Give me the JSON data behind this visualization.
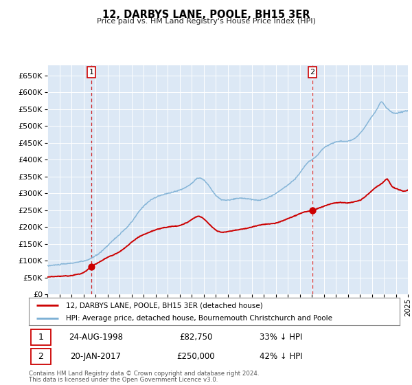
{
  "title": "12, DARBYS LANE, POOLE, BH15 3ER",
  "subtitle": "Price paid vs. HM Land Registry's House Price Index (HPI)",
  "legend_label_red": "12, DARBYS LANE, POOLE, BH15 3ER (detached house)",
  "legend_label_blue": "HPI: Average price, detached house, Bournemouth Christchurch and Poole",
  "transaction1_label": "24-AUG-1998",
  "transaction1_price": "£82,750",
  "transaction1_hpi": "33% ↓ HPI",
  "transaction1_date_num": 1998.65,
  "transaction1_value": 82750,
  "transaction2_label": "20-JAN-2017",
  "transaction2_price": "£250,000",
  "transaction2_hpi": "42% ↓ HPI",
  "transaction2_date_num": 2017.05,
  "transaction2_value": 250000,
  "footer_line1": "Contains HM Land Registry data © Crown copyright and database right 2024.",
  "footer_line2": "This data is licensed under the Open Government Licence v3.0.",
  "red_color": "#cc0000",
  "blue_color": "#7bafd4",
  "bg_color": "#dce8f5",
  "grid_color": "#ffffff",
  "ylim_min": 0,
  "ylim_max": 680000,
  "xlim_min": 1995,
  "xlim_max": 2025
}
